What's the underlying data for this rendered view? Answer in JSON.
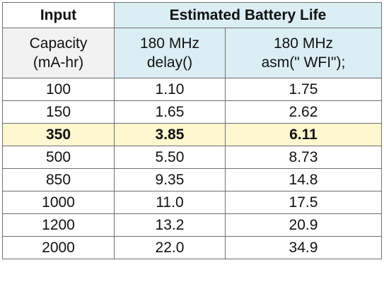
{
  "header": {
    "input_label": "Input",
    "estimated_label": "Estimated Battery Life"
  },
  "subheader": {
    "capacity_line1": "Capacity",
    "capacity_line2": "(mA-hr)",
    "col1_line1": "180 MHz",
    "col1_line2": "delay()",
    "col2_line1": "180 MHz",
    "col2_line2": "asm(\" WFI\");"
  },
  "rows": [
    {
      "capacity": "100",
      "delay": "1.10",
      "wfi": "1.75"
    },
    {
      "capacity": "150",
      "delay": "1.65",
      "wfi": "2.62"
    },
    {
      "capacity": "350",
      "delay": "3.85",
      "wfi": "6.11"
    },
    {
      "capacity": "500",
      "delay": "5.50",
      "wfi": "8.73"
    },
    {
      "capacity": "850",
      "delay": "9.35",
      "wfi": "14.8"
    },
    {
      "capacity": "1000",
      "delay": "11.0",
      "wfi": "17.5"
    },
    {
      "capacity": "1200",
      "delay": "13.2",
      "wfi": "20.9"
    },
    {
      "capacity": "2000",
      "delay": "22.0",
      "wfi": "34.9"
    }
  ],
  "highlight_row_index": 2,
  "colors": {
    "header_blue": "#dbeef4",
    "capacity_gray": "#f2f2f2",
    "highlight_yellow": "#fff7cf",
    "border": "#6f6f6f"
  }
}
